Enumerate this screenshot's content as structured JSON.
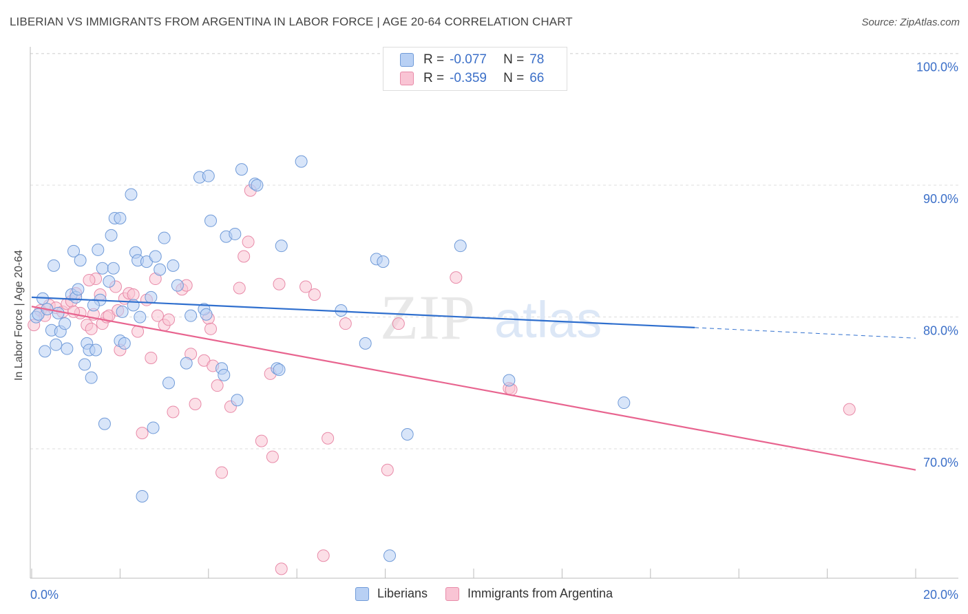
{
  "title": "LIBERIAN VS IMMIGRANTS FROM ARGENTINA IN LABOR FORCE | AGE 20-64 CORRELATION CHART",
  "source": "Source: ZipAtlas.com",
  "watermark": {
    "zip": "ZIP",
    "atlas": "atlas"
  },
  "legend_top": {
    "rows": [
      {
        "r_label": "R =",
        "r_value": "-0.077",
        "n_label": "N =",
        "n_value": "78"
      },
      {
        "r_label": "R =",
        "r_value": "-0.359",
        "n_label": "N =",
        "n_value": "66"
      }
    ]
  },
  "legend_bottom": {
    "series1": "Liberians",
    "series2": "Immigrants from Argentina"
  },
  "colors": {
    "series1_fill": "#b8d0f4",
    "series1_stroke": "#6f9ad8",
    "series1_line": "#2f6fce",
    "series2_fill": "#f9c4d4",
    "series2_stroke": "#e88aa8",
    "series2_line": "#e8648f",
    "tick_text": "#3b6fc8",
    "grid": "#dddddd"
  },
  "chart_data": {
    "type": "scatter",
    "title": "LIBERIAN VS IMMIGRANTS FROM ARGENTINA IN LABOR FORCE | AGE 20-64 CORRELATION CHART",
    "xlabel": "",
    "ylabel": "In Labor Force | Age 20-64",
    "xlim": [
      0,
      20
    ],
    "ylim": [
      60.5,
      101
    ],
    "x_tick_labels": [
      "0.0%",
      "20.0%"
    ],
    "y_ticks": [
      70,
      80,
      90,
      100
    ],
    "y_tick_labels": [
      "70.0%",
      "80.0%",
      "90.0%",
      "100.0%"
    ],
    "grid": true,
    "legend_position": "top-center",
    "series": [
      {
        "name": "Liberians",
        "r": -0.077,
        "n": 78,
        "trend": {
          "x": [
            0,
            15
          ],
          "y": [
            81.6,
            79.3
          ],
          "dashed_extension_to": [
            20,
            78.5
          ]
        },
        "points": [
          [
            0.1,
            80.1
          ],
          [
            0.15,
            80.3
          ],
          [
            0.25,
            81.5
          ],
          [
            0.3,
            77.5
          ],
          [
            0.35,
            80.7
          ],
          [
            0.45,
            79.1
          ],
          [
            0.5,
            84.0
          ],
          [
            0.55,
            78.0
          ],
          [
            0.65,
            79.0
          ],
          [
            0.75,
            79.6
          ],
          [
            0.8,
            77.7
          ],
          [
            0.9,
            81.8
          ],
          [
            0.95,
            85.1
          ],
          [
            1.0,
            81.6
          ],
          [
            1.05,
            82.2
          ],
          [
            1.1,
            84.4
          ],
          [
            1.2,
            76.5
          ],
          [
            1.25,
            78.1
          ],
          [
            1.3,
            77.6
          ],
          [
            1.35,
            75.5
          ],
          [
            1.45,
            77.6
          ],
          [
            1.5,
            85.2
          ],
          [
            1.55,
            81.4
          ],
          [
            1.6,
            83.8
          ],
          [
            1.65,
            72.0
          ],
          [
            1.75,
            82.8
          ],
          [
            1.8,
            86.3
          ],
          [
            1.85,
            83.8
          ],
          [
            1.88,
            87.6
          ],
          [
            2.0,
            87.6
          ],
          [
            2.0,
            78.3
          ],
          [
            2.1,
            78.1
          ],
          [
            2.25,
            89.4
          ],
          [
            2.3,
            81.0
          ],
          [
            2.35,
            85.0
          ],
          [
            2.4,
            84.4
          ],
          [
            2.45,
            80.1
          ],
          [
            2.5,
            66.5
          ],
          [
            2.6,
            84.3
          ],
          [
            2.7,
            81.6
          ],
          [
            2.75,
            71.7
          ],
          [
            2.8,
            84.7
          ],
          [
            2.9,
            83.7
          ],
          [
            3.0,
            86.1
          ],
          [
            3.1,
            75.1
          ],
          [
            3.2,
            84.0
          ],
          [
            3.3,
            82.5
          ],
          [
            3.5,
            76.6
          ],
          [
            3.8,
            90.7
          ],
          [
            3.9,
            80.7
          ],
          [
            3.95,
            80.3
          ],
          [
            4.0,
            90.8
          ],
          [
            4.05,
            87.4
          ],
          [
            4.3,
            76.2
          ],
          [
            4.35,
            75.7
          ],
          [
            4.4,
            86.2
          ],
          [
            4.6,
            86.4
          ],
          [
            4.65,
            73.8
          ],
          [
            4.75,
            91.3
          ],
          [
            5.05,
            90.2
          ],
          [
            5.1,
            90.1
          ],
          [
            5.55,
            76.2
          ],
          [
            5.6,
            76.1
          ],
          [
            5.65,
            85.5
          ],
          [
            6.1,
            91.9
          ],
          [
            7.0,
            80.6
          ],
          [
            7.55,
            78.1
          ],
          [
            7.8,
            84.5
          ],
          [
            7.95,
            84.3
          ],
          [
            8.1,
            62.0
          ],
          [
            8.5,
            71.2
          ],
          [
            9.7,
            85.5
          ],
          [
            10.8,
            75.3
          ],
          [
            13.4,
            73.6
          ],
          [
            0.6,
            80.4
          ],
          [
            1.4,
            81.0
          ],
          [
            2.05,
            80.5
          ],
          [
            3.6,
            80.2
          ]
        ]
      },
      {
        "name": "Immigrants from Argentina",
        "r": -0.359,
        "n": 66,
        "trend": {
          "x": [
            0,
            20
          ],
          "y": [
            80.9,
            68.5
          ]
        },
        "points": [
          [
            0.05,
            79.5
          ],
          [
            0.2,
            80.6
          ],
          [
            0.3,
            80.2
          ],
          [
            0.4,
            81.0
          ],
          [
            0.55,
            80.8
          ],
          [
            0.7,
            80.5
          ],
          [
            0.8,
            81.1
          ],
          [
            0.9,
            81.3
          ],
          [
            1.0,
            81.9
          ],
          [
            1.1,
            80.4
          ],
          [
            1.25,
            79.5
          ],
          [
            1.35,
            79.2
          ],
          [
            1.4,
            80.3
          ],
          [
            1.45,
            83.0
          ],
          [
            1.55,
            81.8
          ],
          [
            1.6,
            79.6
          ],
          [
            1.7,
            80.1
          ],
          [
            1.75,
            80.2
          ],
          [
            1.9,
            82.4
          ],
          [
            1.95,
            80.6
          ],
          [
            2.0,
            77.6
          ],
          [
            2.1,
            81.5
          ],
          [
            2.2,
            81.9
          ],
          [
            2.3,
            81.8
          ],
          [
            2.4,
            79.0
          ],
          [
            2.5,
            71.3
          ],
          [
            2.6,
            81.4
          ],
          [
            2.7,
            77.0
          ],
          [
            2.8,
            83.0
          ],
          [
            2.85,
            80.2
          ],
          [
            3.0,
            79.5
          ],
          [
            3.1,
            79.9
          ],
          [
            3.2,
            72.9
          ],
          [
            3.4,
            82.2
          ],
          [
            3.5,
            82.5
          ],
          [
            3.6,
            77.3
          ],
          [
            3.7,
            73.5
          ],
          [
            3.9,
            76.8
          ],
          [
            4.0,
            80.0
          ],
          [
            4.05,
            79.2
          ],
          [
            4.1,
            76.4
          ],
          [
            4.2,
            74.9
          ],
          [
            4.3,
            68.3
          ],
          [
            4.5,
            73.3
          ],
          [
            4.7,
            82.3
          ],
          [
            4.8,
            84.7
          ],
          [
            4.9,
            85.8
          ],
          [
            4.95,
            89.7
          ],
          [
            5.2,
            70.7
          ],
          [
            5.4,
            75.8
          ],
          [
            5.45,
            69.5
          ],
          [
            5.6,
            82.6
          ],
          [
            5.65,
            61.0
          ],
          [
            6.2,
            82.4
          ],
          [
            6.4,
            81.8
          ],
          [
            6.6,
            62.0
          ],
          [
            6.7,
            70.9
          ],
          [
            7.1,
            79.6
          ],
          [
            8.05,
            68.5
          ],
          [
            8.3,
            79.6
          ],
          [
            9.6,
            83.1
          ],
          [
            10.8,
            74.7
          ],
          [
            10.85,
            74.6
          ],
          [
            18.5,
            73.1
          ],
          [
            1.3,
            82.9
          ],
          [
            0.95,
            80.5
          ]
        ]
      }
    ]
  }
}
